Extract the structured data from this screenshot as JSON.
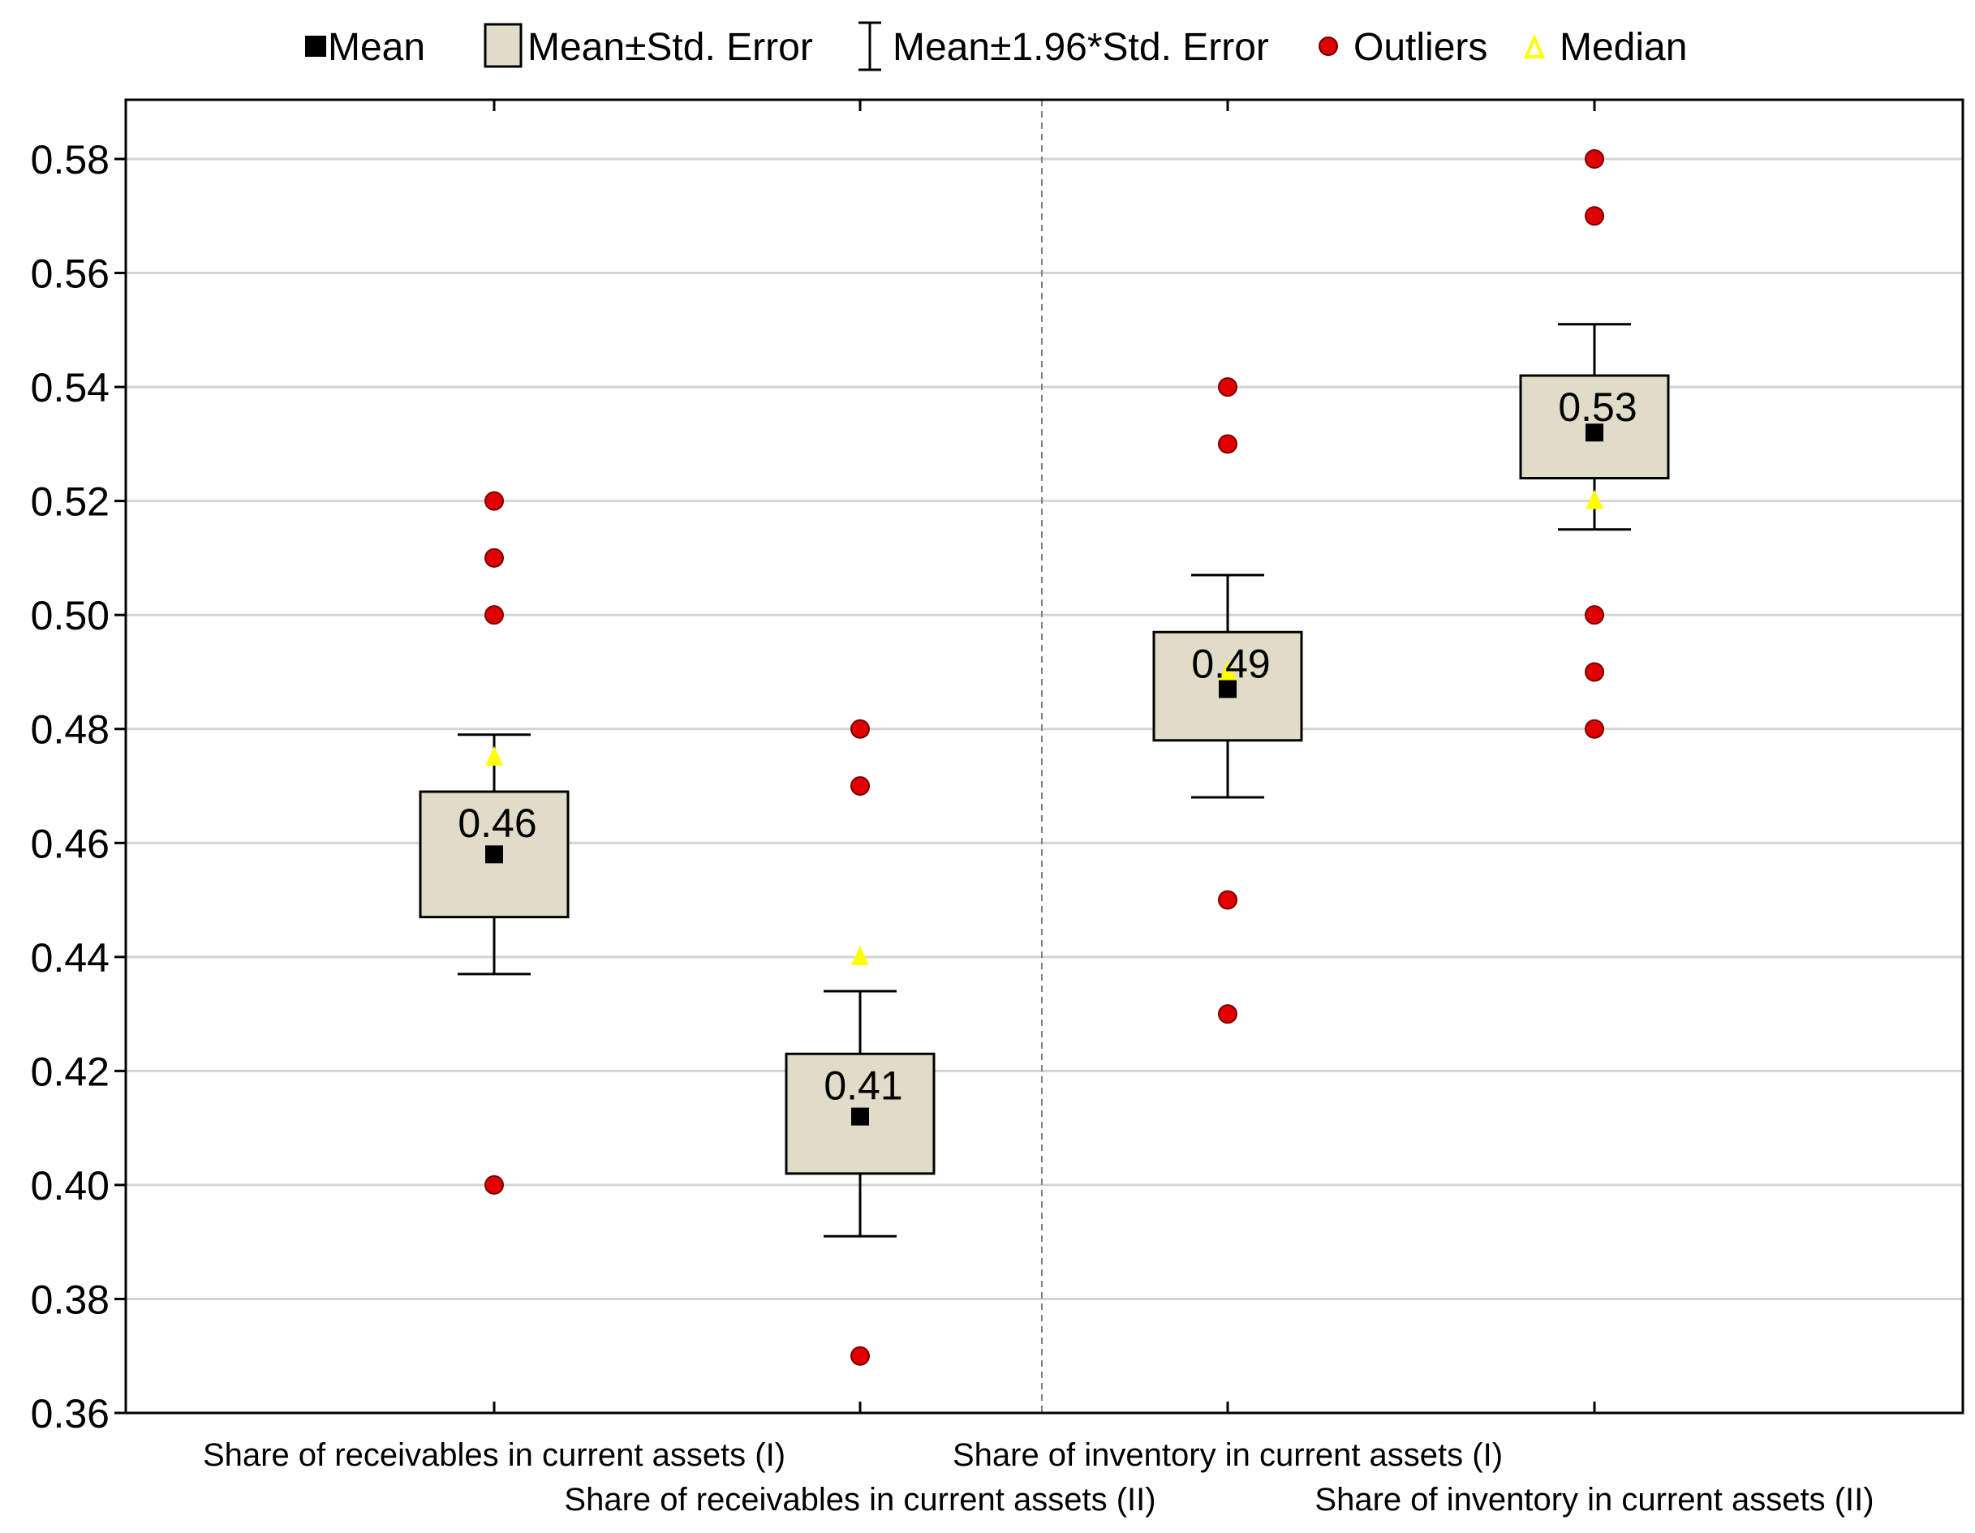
{
  "chart_data": {
    "type": "boxplot",
    "legend": {
      "mean": "Mean",
      "box": "Mean±Std. Error",
      "whisker": "Mean±1.96*Std. Error",
      "outliers": "Outliers",
      "median": "Median"
    },
    "ylim": [
      0.36,
      0.59
    ],
    "yticks": [
      0.36,
      0.38,
      0.4,
      0.42,
      0.44,
      0.46,
      0.48,
      0.5,
      0.52,
      0.54,
      0.56,
      0.58
    ],
    "ytick_labels": [
      "0.36",
      "0.38",
      "0.40",
      "0.42",
      "0.44",
      "0.46",
      "0.48",
      "0.50",
      "0.52",
      "0.54",
      "0.56",
      "0.58"
    ],
    "grid": true,
    "separator_after_category": 2,
    "categories": [
      {
        "label": "Share of receivables in current assets (I)",
        "mean": 0.458,
        "mean_label": "0.46",
        "box": [
          0.447,
          0.469
        ],
        "whisker": [
          0.437,
          0.479
        ],
        "median": 0.475,
        "outliers": [
          0.52,
          0.51,
          0.5,
          0.4
        ]
      },
      {
        "label": "Share of receivables in current assets (II)",
        "mean": 0.412,
        "mean_label": "0.41",
        "box": [
          0.402,
          0.423
        ],
        "whisker": [
          0.391,
          0.434
        ],
        "median": 0.44,
        "outliers": [
          0.48,
          0.47,
          0.37
        ]
      },
      {
        "label": "Share of inventory in current assets (I)",
        "mean": 0.487,
        "mean_label": "0.49",
        "box": [
          0.478,
          0.497
        ],
        "whisker": [
          0.468,
          0.507
        ],
        "median": 0.49,
        "outliers": [
          0.54,
          0.53,
          0.45,
          0.43
        ]
      },
      {
        "label": "Share of inventory in current assets (II)",
        "mean": 0.532,
        "mean_label": "0.53",
        "box": [
          0.524,
          0.542
        ],
        "whisker": [
          0.515,
          0.551
        ],
        "median": 0.52,
        "outliers": [
          0.58,
          0.57,
          0.5,
          0.49,
          0.48
        ]
      }
    ],
    "colors": {
      "box_fill": "#e0dcc8",
      "outlier": "#e00000",
      "median": "#ffff00",
      "mean": "#000000",
      "grid": "#d4d4d4",
      "separator": "#808080"
    }
  }
}
